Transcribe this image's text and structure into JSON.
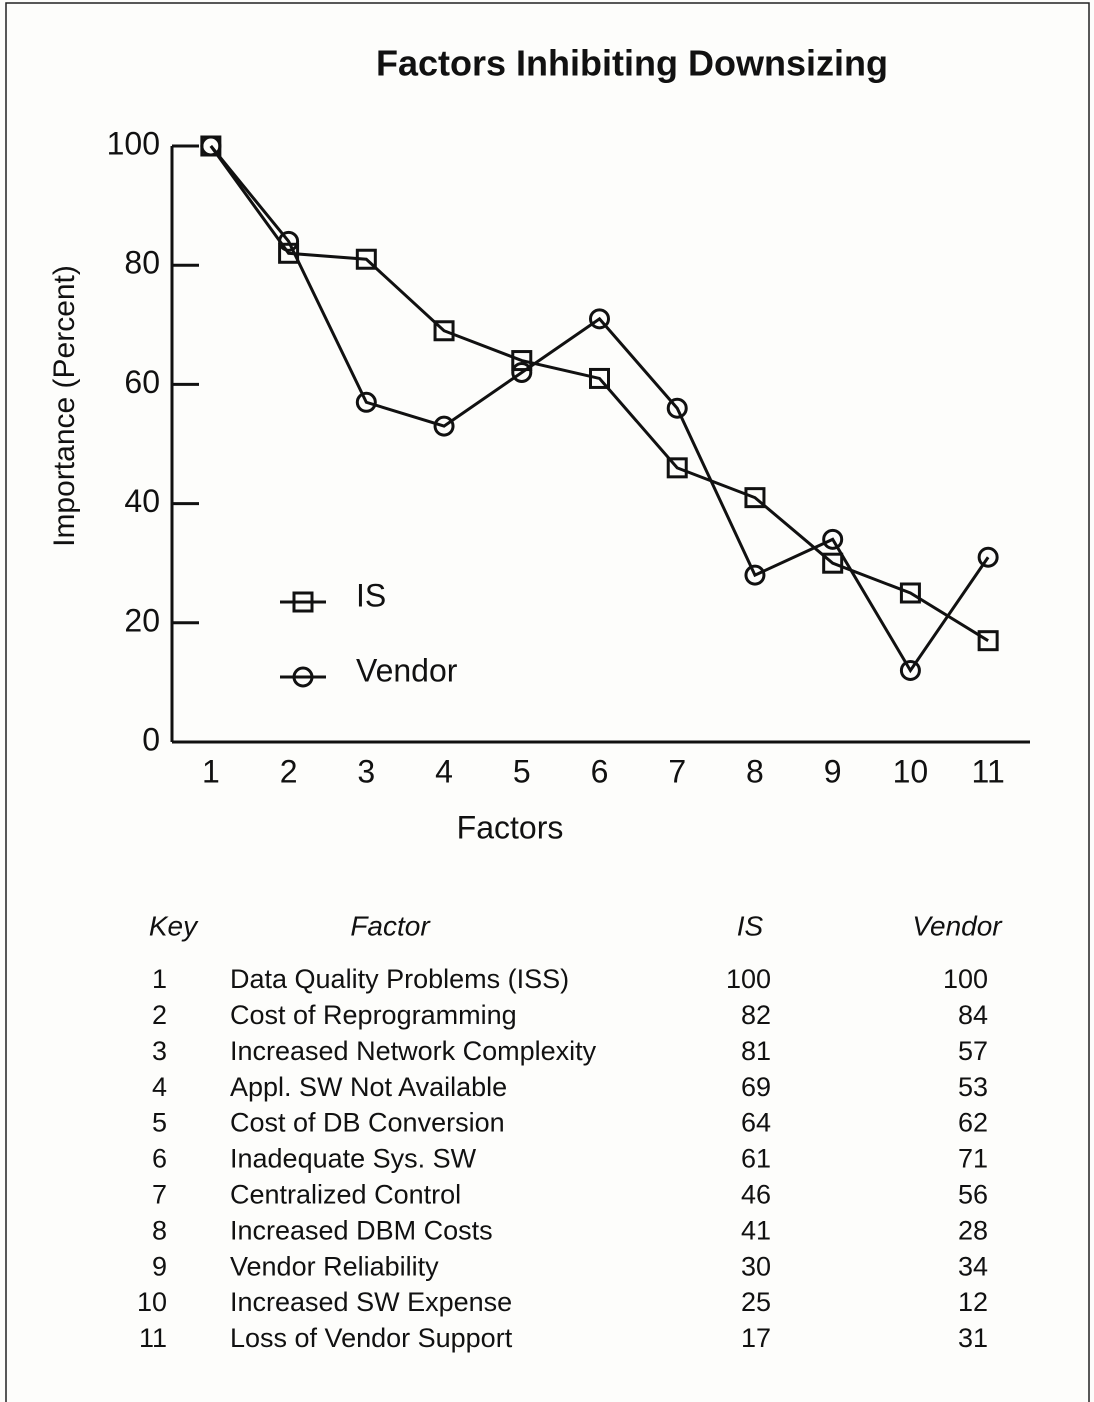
{
  "chart_data": {
    "type": "line",
    "title": "Factors Inhibiting Downsizing",
    "xlabel": "Factors",
    "ylabel": "Importance (Percent)",
    "categories": [
      "1",
      "2",
      "3",
      "4",
      "5",
      "6",
      "7",
      "8",
      "9",
      "10",
      "11"
    ],
    "series": [
      {
        "name": "IS",
        "color": "#111111",
        "marker": "square",
        "values": [
          100,
          82,
          81,
          69,
          64,
          61,
          46,
          41,
          30,
          25,
          17
        ]
      },
      {
        "name": "Vendor",
        "color": "#111111",
        "marker": "circle",
        "values": [
          100,
          84,
          57,
          53,
          62,
          71,
          56,
          28,
          34,
          12,
          31
        ]
      }
    ],
    "ylim": [
      0,
      100
    ],
    "yticks": [
      0,
      20,
      40,
      60,
      80,
      100
    ],
    "grid": false,
    "legend": "lower left"
  },
  "table": {
    "headers": [
      "Key",
      "Factor",
      "IS",
      "Vendor"
    ],
    "factors": [
      "Data Quality Problems (ISS)",
      "Cost of Reprogramming",
      "Increased Network Complexity",
      "Appl. SW Not Available",
      "Cost of DB Conversion",
      "Inadequate Sys. SW",
      "Centralized Control",
      "Increased DBM Costs",
      "Vendor Reliability",
      "Increased SW Expense",
      "Loss of Vendor Support"
    ]
  }
}
